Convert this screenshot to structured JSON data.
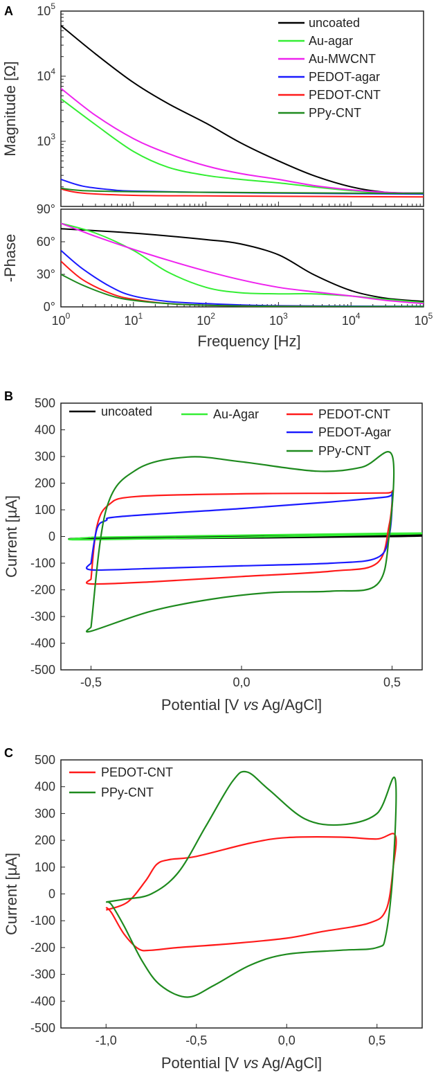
{
  "chart_data": [
    {
      "panel": "A",
      "type": "line",
      "subplots": [
        {
          "name": "magnitude",
          "ylabel": "Magnitude [Ω]",
          "yscale": "log",
          "ylim": [
            100,
            100000
          ],
          "yticks": [
            {
              "value": 1000,
              "base": "10",
              "exp": "3"
            },
            {
              "value": 10000,
              "base": "10",
              "exp": "4"
            },
            {
              "value": 100000,
              "base": "10",
              "exp": "5"
            }
          ],
          "series": [
            {
              "name": "uncoated",
              "color": "#000000",
              "x": [
                1,
                3,
                10,
                30,
                100,
                300,
                1000,
                3000,
                10000,
                30000,
                100000
              ],
              "y": [
                60000,
                22000,
                8000,
                3800,
                1900,
                950,
                500,
                300,
                200,
                165,
                160
              ]
            },
            {
              "name": "Au-agar",
              "color": "#33ee33",
              "x": [
                1,
                3,
                10,
                30,
                100,
                300,
                1000,
                3000,
                10000,
                30000,
                100000
              ],
              "y": [
                4500,
                1800,
                700,
                400,
                300,
                260,
                230,
                200,
                175,
                162,
                158
              ]
            },
            {
              "name": "Au-MWCNT",
              "color": "#ee22ee",
              "x": [
                1,
                3,
                10,
                30,
                100,
                300,
                1000,
                3000,
                10000,
                30000,
                100000
              ],
              "y": [
                6500,
                2500,
                1100,
                650,
                420,
                320,
                260,
                210,
                180,
                165,
                158
              ]
            },
            {
              "name": "PEDOT-agar",
              "color": "#1a1aff",
              "x": [
                1,
                2,
                5,
                10,
                100,
                1000,
                100000
              ],
              "y": [
                260,
                205,
                180,
                172,
                165,
                160,
                155
              ]
            },
            {
              "name": "PEDOT-CNT",
              "color": "#ff1a1a",
              "x": [
                1,
                2,
                10,
                100,
                1000,
                100000
              ],
              "y": [
                185,
                160,
                148,
                145,
                143,
                140
              ]
            },
            {
              "name": "PPy-CNT",
              "color": "#1e8a1e",
              "x": [
                1,
                2,
                10,
                100,
                1000,
                100000
              ],
              "y": [
                190,
                175,
                168,
                165,
                162,
                158
              ]
            }
          ]
        },
        {
          "name": "phase",
          "ylabel": "-Phase",
          "yscale": "linear",
          "ylim": [
            0,
            90
          ],
          "yticks": [
            {
              "value": 0,
              "label": "0°"
            },
            {
              "value": 30,
              "label": "30°"
            },
            {
              "value": 60,
              "label": "60°"
            },
            {
              "value": 90,
              "label": "90°"
            }
          ],
          "series": [
            {
              "name": "uncoated",
              "color": "#000000",
              "x": [
                1,
                10,
                100,
                300,
                1000,
                3000,
                10000,
                30000,
                100000
              ],
              "y": [
                72,
                68,
                62,
                58,
                48,
                30,
                15,
                8,
                5
              ]
            },
            {
              "name": "Au-agar",
              "color": "#33ee33",
              "x": [
                1,
                3,
                10,
                30,
                100,
                300,
                1000,
                3000,
                10000,
                30000,
                100000
              ],
              "y": [
                77,
                68,
                52,
                32,
                18,
                13,
                12,
                12,
                10,
                7,
                4
              ]
            },
            {
              "name": "Au-MWCNT",
              "color": "#ee22ee",
              "x": [
                1,
                3,
                10,
                30,
                100,
                300,
                1000,
                3000,
                10000,
                30000,
                100000
              ],
              "y": [
                77,
                65,
                53,
                43,
                33,
                25,
                18,
                14,
                10,
                6,
                3
              ]
            },
            {
              "name": "PEDOT-agar",
              "color": "#1a1aff",
              "x": [
                1,
                2,
                5,
                10,
                30,
                100,
                1000,
                100000
              ],
              "y": [
                52,
                35,
                18,
                10,
                5,
                3,
                1,
                0.5
              ]
            },
            {
              "name": "PEDOT-CNT",
              "color": "#ff1a1a",
              "x": [
                1,
                2,
                5,
                10,
                30,
                100,
                1000,
                100000
              ],
              "y": [
                42,
                25,
                12,
                7,
                3,
                1.5,
                0.5,
                0.3
              ]
            },
            {
              "name": "PPy-CNT",
              "color": "#1e8a1e",
              "x": [
                1,
                2,
                5,
                10,
                30,
                100,
                1000,
                100000
              ],
              "y": [
                30,
                20,
                10,
                6,
                3,
                1.5,
                0.5,
                0.3
              ]
            }
          ]
        }
      ],
      "xlabel": "Frequency [Hz]",
      "xscale": "log",
      "xlim": [
        1,
        100000
      ],
      "xticks": [
        {
          "value": 1,
          "base": "10",
          "exp": "0"
        },
        {
          "value": 10,
          "base": "10",
          "exp": "1"
        },
        {
          "value": 100,
          "base": "10",
          "exp": "2"
        },
        {
          "value": 1000,
          "base": "10",
          "exp": "3"
        },
        {
          "value": 10000,
          "base": "10",
          "exp": "4"
        },
        {
          "value": 100000,
          "base": "10",
          "exp": "5"
        }
      ],
      "legend": [
        "uncoated",
        "Au-agar",
        "Au-MWCNT",
        "PEDOT-agar",
        "PEDOT-CNT",
        "PPy-CNT"
      ],
      "legend_position": "top-right"
    },
    {
      "panel": "B",
      "type": "line",
      "xlabel_prefix": "Potential [V ",
      "xlabel_italic": "vs",
      "xlabel_suffix": " Ag/AgCl]",
      "ylabel": "Current [µA]",
      "xlim": [
        -0.6,
        0.6
      ],
      "ylim": [
        -500,
        500
      ],
      "xticks": [
        {
          "value": -0.5,
          "label": "-0,5"
        },
        {
          "value": 0,
          "label": "0,0"
        },
        {
          "value": 0.5,
          "label": "0,5"
        }
      ],
      "yticks": [
        {
          "value": 500,
          "label": "500"
        },
        {
          "value": 400,
          "label": "400"
        },
        {
          "value": 300,
          "label": "300"
        },
        {
          "value": 200,
          "label": "200"
        },
        {
          "value": 100,
          "label": "100"
        },
        {
          "value": 0,
          "label": "0"
        },
        {
          "value": -100,
          "label": "-100"
        },
        {
          "value": -200,
          "label": "-200"
        },
        {
          "value": -300,
          "label": "-300"
        },
        {
          "value": -400,
          "label": "-400"
        },
        {
          "value": -500,
          "label": "-500"
        }
      ],
      "series": [
        {
          "name": "uncoated",
          "color": "#000000",
          "x": [
            -0.5,
            0.5,
            0.5,
            -0.5,
            -0.5
          ],
          "y": [
            -5,
            5,
            0,
            -10,
            -5
          ]
        },
        {
          "name": "Au-Agar",
          "color": "#33ee33",
          "x": [
            -0.5,
            0.5,
            0.5,
            -0.5,
            -0.5
          ],
          "y": [
            -3,
            12,
            8,
            -12,
            -3
          ]
        },
        {
          "name": "PEDOT-CNT",
          "color": "#ff1a1a",
          "x": [
            -0.5,
            -0.48,
            -0.44,
            -0.35,
            0,
            0.3,
            0.48,
            0.5,
            0.49,
            0.45,
            0.3,
            0,
            -0.3,
            -0.5,
            -0.5
          ],
          "y": [
            -160,
            40,
            120,
            150,
            160,
            162,
            163,
            162,
            40,
            -100,
            -130,
            -150,
            -170,
            -178,
            -160
          ]
        },
        {
          "name": "PEDOT-Agar",
          "color": "#1a1aff",
          "x": [
            -0.5,
            -0.48,
            -0.45,
            -0.4,
            0,
            0.3,
            0.48,
            0.5,
            0.49,
            0.45,
            0.3,
            0,
            -0.3,
            -0.5,
            -0.5
          ],
          "y": [
            -100,
            30,
            60,
            75,
            105,
            130,
            148,
            155,
            0,
            -80,
            -100,
            -110,
            -120,
            -125,
            -100
          ]
        },
        {
          "name": "PPy-CNT",
          "color": "#1e8a1e",
          "x": [
            -0.5,
            -0.45,
            -0.35,
            -0.18,
            0,
            0.25,
            0.4,
            0.5,
            0.49,
            0.45,
            0.3,
            0.1,
            -0.1,
            -0.3,
            -0.5,
            -0.5
          ],
          "y": [
            -340,
            100,
            250,
            298,
            280,
            245,
            260,
            305,
            0,
            -180,
            -205,
            -210,
            -235,
            -280,
            -355,
            -340
          ]
        }
      ],
      "legend": [
        "uncoated",
        "Au-Agar",
        "PEDOT-CNT",
        "PEDOT-Agar",
        "PPy-CNT"
      ],
      "legend_position": "top"
    },
    {
      "panel": "C",
      "type": "line",
      "xlabel_prefix": "Potential [V ",
      "xlabel_italic": "vs",
      "xlabel_suffix": " Ag/AgCl]",
      "ylabel": "Current [µA]",
      "xlim": [
        -1.25,
        0.75
      ],
      "ylim": [
        -500,
        500
      ],
      "xticks": [
        {
          "value": -1.0,
          "label": "-1,0"
        },
        {
          "value": -0.5,
          "label": "-0,5"
        },
        {
          "value": 0.0,
          "label": "0,0"
        },
        {
          "value": 0.5,
          "label": "0,5"
        }
      ],
      "yticks": [
        {
          "value": 500,
          "label": "500"
        },
        {
          "value": 400,
          "label": "400"
        },
        {
          "value": 300,
          "label": "300"
        },
        {
          "value": 200,
          "label": "200"
        },
        {
          "value": 100,
          "label": "100"
        },
        {
          "value": 0,
          "label": "0"
        },
        {
          "value": -100,
          "label": "-100"
        },
        {
          "value": -200,
          "label": "-200"
        },
        {
          "value": -300,
          "label": "-300"
        },
        {
          "value": -400,
          "label": "-400"
        },
        {
          "value": -500,
          "label": "-500"
        }
      ],
      "series": [
        {
          "name": "PEDOT-CNT",
          "color": "#ff1a1a",
          "x": [
            -1.0,
            -0.88,
            -0.78,
            -0.72,
            -0.65,
            -0.5,
            -0.2,
            0.0,
            0.3,
            0.5,
            0.6,
            0.59,
            0.55,
            0.45,
            0.2,
            0.0,
            -0.3,
            -0.6,
            -0.75,
            -0.82,
            -0.9,
            -0.97,
            -1.0
          ],
          "y": [
            -60,
            -30,
            50,
            110,
            128,
            140,
            190,
            210,
            212,
            205,
            220,
            100,
            -60,
            -110,
            -140,
            -165,
            -185,
            -200,
            -210,
            -205,
            -150,
            -70,
            -50
          ]
        },
        {
          "name": "PPy-CNT",
          "color": "#1e8a1e",
          "x": [
            -1.0,
            -0.9,
            -0.75,
            -0.6,
            -0.45,
            -0.3,
            -0.22,
            -0.1,
            0.1,
            0.3,
            0.5,
            0.6,
            0.59,
            0.55,
            0.5,
            0.3,
            0.0,
            -0.2,
            -0.4,
            -0.55,
            -0.7,
            -0.8,
            -0.9,
            -0.97,
            -1.0
          ],
          "y": [
            -30,
            -20,
            0,
            80,
            250,
            420,
            455,
            390,
            280,
            258,
            300,
            430,
            100,
            -150,
            -200,
            -210,
            -225,
            -265,
            -340,
            -385,
            -340,
            -250,
            -120,
            -40,
            -30
          ]
        }
      ],
      "legend": [
        "PEDOT-CNT",
        "PPy-CNT"
      ],
      "legend_position": "top-left"
    }
  ],
  "panel_labels": [
    "A",
    "B",
    "C"
  ]
}
